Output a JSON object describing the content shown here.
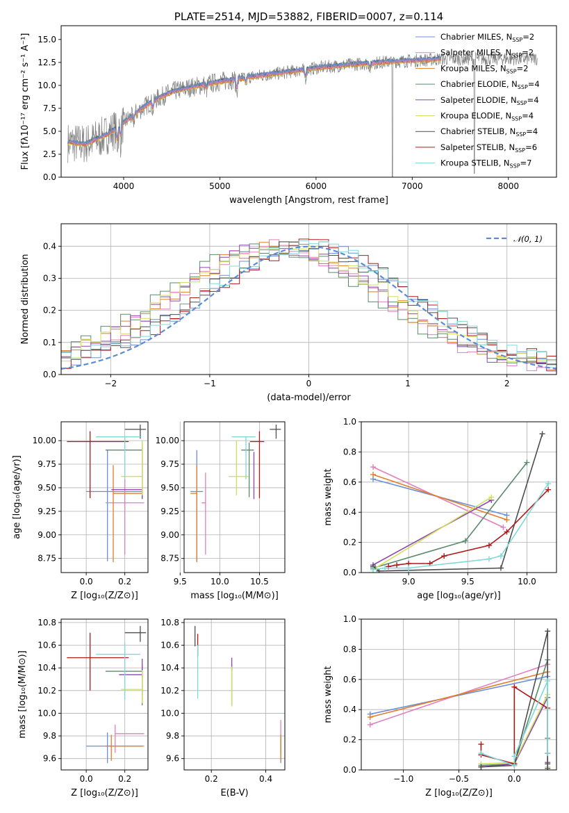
{
  "colors": {
    "chabrier_miles": "#6a8fd6",
    "salpeter_miles": "#e07fbd",
    "kroupa_miles": "#e07d28",
    "chabrier_elodie": "#5a8a6a",
    "salpeter_elodie": "#8e44ad",
    "kroupa_elodie": "#cfe05a",
    "chabrier_stelib": "#4d4d4d",
    "salpeter_stelib": "#b01818",
    "kroupa_stelib": "#7fd8d8",
    "normal": "#5b8bd6",
    "data": "#808080"
  },
  "chart_data": [
    {
      "id": "spectrum",
      "type": "line",
      "title": "PLATE=2514, MJD=53882, FIBERID=0007, z=0.114",
      "xlabel": "wavelength [Angstrom, rest frame]",
      "ylabel": "Flux [fλ10⁻¹⁷ erg cm⁻² s⁻¹ A⁻¹]",
      "xlim": [
        3350,
        8500
      ],
      "ylim": [
        0,
        16.5
      ],
      "xticks": [
        4000,
        5000,
        6000,
        7000,
        8000
      ],
      "yticks": [
        0.0,
        2.5,
        5.0,
        7.5,
        10.0,
        12.5,
        15.0
      ],
      "legend_position": "top-right",
      "legend": [
        {
          "label": "Chabrier MILES, N",
          "sub": "SSP",
          "suffix": "=2"
        },
        {
          "label": "Salpeter MILES, N",
          "sub": "SSP",
          "suffix": "=2"
        },
        {
          "label": "Kroupa MILES, N",
          "sub": "SSP",
          "suffix": "=2"
        },
        {
          "label": "Chabrier ELODIE, N",
          "sub": "SSP",
          "suffix": "=4"
        },
        {
          "label": "Salpeter ELODIE, N",
          "sub": "SSP",
          "suffix": "=4"
        },
        {
          "label": "Kroupa ELODIE, N",
          "sub": "SSP",
          "suffix": "=4"
        },
        {
          "label": "Chabrier STELIB, N",
          "sub": "SSP",
          "suffix": "=4"
        },
        {
          "label": "Salpeter STELIB, N",
          "sub": "SSP",
          "suffix": "=6"
        },
        {
          "label": "Kroupa STELIB, N",
          "sub": "SSP",
          "suffix": "=7"
        }
      ],
      "continuum": [
        [
          3420,
          3.8
        ],
        [
          3600,
          3.6
        ],
        [
          3800,
          4.5
        ],
        [
          3950,
          5.5
        ],
        [
          4100,
          6.8
        ],
        [
          4300,
          8.3
        ],
        [
          4500,
          9.3
        ],
        [
          4700,
          9.8
        ],
        [
          5000,
          10.4
        ],
        [
          5300,
          10.9
        ],
        [
          5600,
          11.3
        ],
        [
          6000,
          11.9
        ],
        [
          6400,
          12.3
        ],
        [
          6800,
          12.6
        ],
        [
          7200,
          12.8
        ],
        [
          7300,
          12.9
        ]
      ],
      "features": [
        [
          3933,
          -1.5
        ],
        [
          3968,
          -1.4
        ],
        [
          4101,
          -0.8
        ],
        [
          4304,
          -1.0
        ],
        [
          4861,
          -0.6
        ],
        [
          5175,
          -1.2
        ],
        [
          5270,
          -0.6
        ],
        [
          5890,
          -1.0
        ],
        [
          6563,
          -0.6
        ]
      ]
    },
    {
      "id": "residuals",
      "type": "histogram",
      "xlabel": "(data-model)/error",
      "ylabel": "Normed distribution",
      "xlim": [
        -2.5,
        2.5
      ],
      "ylim": [
        0,
        0.47
      ],
      "xticks": [
        -2,
        -1,
        0,
        1,
        2
      ],
      "yticks": [
        0.0,
        0.1,
        0.2,
        0.3,
        0.4
      ],
      "legend_position": "top-right",
      "reference_label": "𝒩(0, 1)",
      "bin_width": 0.1,
      "series_params": [
        {
          "name": "chabrier_miles",
          "sigma": 1.0,
          "mu": 0.0
        },
        {
          "name": "salpeter_miles",
          "sigma": 0.95,
          "mu": -0.35
        },
        {
          "name": "kroupa_miles",
          "sigma": 1.0,
          "mu": -0.3
        },
        {
          "name": "chabrier_elodie",
          "sigma": 1.0,
          "mu": -0.4
        },
        {
          "name": "salpeter_elodie",
          "sigma": 0.98,
          "mu": -0.3
        },
        {
          "name": "kroupa_elodie",
          "sigma": 1.02,
          "mu": -0.25
        },
        {
          "name": "chabrier_stelib",
          "sigma": 1.0,
          "mu": -0.05
        },
        {
          "name": "salpeter_stelib",
          "sigma": 1.0,
          "mu": 0.05
        },
        {
          "name": "kroupa_stelib",
          "sigma": 1.0,
          "mu": 0.0
        }
      ]
    },
    {
      "id": "age_vs_Z",
      "type": "errorbar",
      "xlabel": "Z [log₁₀(Z/Z⊙)]",
      "ylabel": "age  [log₁₀(age/yr)]",
      "xlim": [
        -0.13,
        0.32
      ],
      "ylim": [
        8.6,
        10.2
      ],
      "xticks": [
        0.0,
        0.2
      ],
      "yticks": [
        8.75,
        9.0,
        9.25,
        9.5,
        9.75,
        10.0
      ],
      "points": [
        {
          "s": "chabrier_miles",
          "x": 0.11,
          "y": 9.46,
          "xerr": [
            0.11,
            0.18
          ],
          "yerr": [
            0.74,
            0.44
          ]
        },
        {
          "s": "salpeter_miles",
          "x": 0.2,
          "y": 9.34,
          "xerr": [
            0.1,
            0.1
          ],
          "yerr": [
            0.55,
            0.25
          ]
        },
        {
          "s": "kroupa_miles",
          "x": 0.14,
          "y": 9.44,
          "xerr": [
            0.0,
            0.15
          ],
          "yerr": [
            0.73,
            0.3
          ]
        },
        {
          "s": "chabrier_elodie",
          "x": 0.29,
          "y": 9.9,
          "xerr": [
            0.19,
            0.0
          ],
          "yerr": [
            0.5,
            0.08
          ]
        },
        {
          "s": "salpeter_elodie",
          "x": 0.29,
          "y": 9.48,
          "xerr": [
            0.16,
            0.0
          ],
          "yerr": [
            0.1,
            0.4
          ]
        },
        {
          "s": "kroupa_elodie",
          "x": 0.29,
          "y": 9.62,
          "xerr": [
            0.11,
            0.0
          ],
          "yerr": [
            0.2,
            0.38
          ]
        },
        {
          "s": "chabrier_stelib",
          "x": 0.28,
          "y": 10.12,
          "xerr": [
            0.08,
            0.03
          ],
          "yerr": [
            0.1,
            0.05
          ]
        },
        {
          "s": "salpeter_stelib",
          "x": 0.02,
          "y": 9.99,
          "xerr": [
            0.12,
            0.2
          ],
          "yerr": [
            0.6,
            0.11
          ]
        },
        {
          "s": "kroupa_stelib",
          "x": 0.2,
          "y": 10.04,
          "xerr": [
            0.15,
            0.08
          ],
          "yerr": [
            0.45,
            0.0
          ]
        }
      ]
    },
    {
      "id": "age_vs_mass",
      "type": "errorbar",
      "xlabel": "mass [log₁₀(M/M⊙)]",
      "ylabel": "",
      "xlim": [
        9.55,
        10.82
      ],
      "ylim": [
        8.6,
        10.2
      ],
      "xticks": [
        9.5,
        10.0,
        10.5
      ],
      "yticks": [
        8.75,
        9.0,
        9.25,
        9.5,
        9.75,
        10.0
      ],
      "points": [
        {
          "s": "chabrier_miles",
          "x": 9.71,
          "y": 9.46,
          "xerr": [
            0.08,
            0.08
          ],
          "yerr": [
            0.74,
            0.44
          ]
        },
        {
          "s": "salpeter_miles",
          "x": 9.82,
          "y": 9.34,
          "xerr": [
            0.05,
            0.0
          ],
          "yerr": [
            0.55,
            0.32
          ]
        },
        {
          "s": "kroupa_miles",
          "x": 9.71,
          "y": 9.44,
          "xerr": [
            0.08,
            0.0
          ],
          "yerr": [
            0.73,
            0.3
          ]
        },
        {
          "s": "chabrier_elodie",
          "x": 10.37,
          "y": 9.9,
          "xerr": [
            0.1,
            0.06
          ],
          "yerr": [
            0.5,
            0.08
          ]
        },
        {
          "s": "salpeter_elodie",
          "x": 10.43,
          "y": 9.48,
          "xerr": [
            0.0,
            0.0
          ],
          "yerr": [
            0.1,
            0.4
          ]
        },
        {
          "s": "kroupa_elodie",
          "x": 10.21,
          "y": 9.62,
          "xerr": [
            0.1,
            0.15
          ],
          "yerr": [
            0.2,
            0.38
          ]
        },
        {
          "s": "chabrier_stelib",
          "x": 10.71,
          "y": 10.12,
          "xerr": [
            0.08,
            0.06
          ],
          "yerr": [
            0.1,
            0.05
          ]
        },
        {
          "s": "salpeter_stelib",
          "x": 10.5,
          "y": 9.99,
          "xerr": [
            0.12,
            0.06
          ],
          "yerr": [
            0.6,
            0.11
          ]
        },
        {
          "s": "kroupa_stelib",
          "x": 10.33,
          "y": 10.04,
          "xerr": [
            0.18,
            0.12
          ],
          "yerr": [
            0.45,
            0.0
          ]
        }
      ]
    },
    {
      "id": "weight_vs_age",
      "type": "line",
      "xlabel": "age  [log₁₀(age/yr)]",
      "ylabel": "mass weight",
      "xlim": [
        8.6,
        10.25
      ],
      "ylim": [
        0.0,
        1.0
      ],
      "xticks": [
        9.0,
        9.5,
        10.0
      ],
      "yticks": [
        0.0,
        0.2,
        0.4,
        0.6,
        0.8,
        1.0
      ],
      "series": [
        {
          "s": "chabrier_miles",
          "x": [
            8.7,
            9.83
          ],
          "y": [
            0.62,
            0.38
          ]
        },
        {
          "s": "salpeter_miles",
          "x": [
            8.7,
            9.8
          ],
          "y": [
            0.7,
            0.3
          ]
        },
        {
          "s": "kroupa_miles",
          "x": [
            8.7,
            9.83
          ],
          "y": [
            0.65,
            0.35
          ]
        },
        {
          "s": "chabrier_elodie",
          "x": [
            8.7,
            9.48,
            10.0
          ],
          "y": [
            0.03,
            0.21,
            0.73
          ]
        },
        {
          "s": "salpeter_elodie",
          "x": [
            8.7,
            9.7
          ],
          "y": [
            0.05,
            0.48
          ]
        },
        {
          "s": "kroupa_elodie",
          "x": [
            8.7,
            9.7
          ],
          "y": [
            0.02,
            0.5
          ]
        },
        {
          "s": "chabrier_stelib",
          "x": [
            8.7,
            8.75,
            9.78,
            10.13
          ],
          "y": [
            0.04,
            0.01,
            0.03,
            0.92
          ]
        },
        {
          "s": "salpeter_stelib",
          "x": [
            8.83,
            8.9,
            9.0,
            9.18,
            9.3,
            9.68,
            9.83,
            10.18
          ],
          "y": [
            0.04,
            0.05,
            0.06,
            0.06,
            0.11,
            0.18,
            0.27,
            0.55
          ]
        },
        {
          "s": "kroupa_stelib",
          "x": [
            8.7,
            8.8,
            9.0,
            9.68,
            9.78,
            10.18
          ],
          "y": [
            0.02,
            0.03,
            0.03,
            0.09,
            0.11,
            0.59
          ]
        }
      ]
    },
    {
      "id": "mass_vs_Z",
      "type": "errorbar",
      "xlabel": "Z [log₁₀(Z/Z⊙)]",
      "ylabel": "mass [log₁₀(M/M⊙)]",
      "xlim": [
        -0.13,
        0.32
      ],
      "ylim": [
        9.5,
        10.83
      ],
      "xticks": [
        0.0,
        0.2
      ],
      "yticks": [
        9.6,
        9.8,
        10.0,
        10.2,
        10.4,
        10.6,
        10.8
      ],
      "points": [
        {
          "s": "chabrier_miles",
          "x": 0.11,
          "y": 9.71,
          "xerr": [
            0.11,
            0.18
          ],
          "yerr": [
            0.15,
            0.12
          ]
        },
        {
          "s": "salpeter_miles",
          "x": 0.15,
          "y": 9.82,
          "xerr": [
            0.0,
            0.15
          ],
          "yerr": [
            0.17,
            0.08
          ]
        },
        {
          "s": "kroupa_miles",
          "x": 0.13,
          "y": 9.71,
          "xerr": [
            0.03,
            0.17
          ],
          "yerr": [
            0.13,
            0.1
          ]
        },
        {
          "s": "chabrier_elodie",
          "x": 0.29,
          "y": 10.37,
          "xerr": [
            0.19,
            0.0
          ],
          "yerr": [
            0.3,
            0.06
          ]
        },
        {
          "s": "salpeter_elodie",
          "x": 0.29,
          "y": 10.34,
          "xerr": [
            0.12,
            0.0
          ],
          "yerr": [
            0.18,
            0.14
          ]
        },
        {
          "s": "kroupa_elodie",
          "x": 0.29,
          "y": 10.21,
          "xerr": [
            0.11,
            0.0
          ],
          "yerr": [
            0.12,
            0.17
          ]
        },
        {
          "s": "chabrier_stelib",
          "x": 0.28,
          "y": 10.71,
          "xerr": [
            0.08,
            0.03
          ],
          "yerr": [
            0.08,
            0.06
          ]
        },
        {
          "s": "salpeter_stelib",
          "x": 0.02,
          "y": 10.49,
          "xerr": [
            0.12,
            0.2
          ],
          "yerr": [
            0.29,
            0.22
          ]
        },
        {
          "s": "kroupa_stelib",
          "x": 0.2,
          "y": 10.52,
          "xerr": [
            0.15,
            0.08
          ],
          "yerr": [
            0.4,
            0.1
          ]
        }
      ]
    },
    {
      "id": "mass_vs_ebv",
      "type": "errorbar",
      "xlabel": "E(B-V)",
      "ylabel": "",
      "xlim": [
        0.1,
        0.47
      ],
      "ylim": [
        9.5,
        10.83
      ],
      "xticks": [
        0.2,
        0.4
      ],
      "yticks": [
        9.6,
        9.8,
        10.0,
        10.2,
        10.4,
        10.6,
        10.8
      ],
      "points": [
        {
          "s": "chabrier_miles",
          "x": 0.455,
          "y": 9.71,
          "xerr": [
            0,
            0
          ],
          "yerr": [
            0.15,
            0.1
          ]
        },
        {
          "s": "salpeter_miles",
          "x": 0.455,
          "y": 9.82,
          "xerr": [
            0,
            0
          ],
          "yerr": [
            0.17,
            0.12
          ]
        },
        {
          "s": "kroupa_miles",
          "x": 0.455,
          "y": 9.71,
          "xerr": [
            0,
            0
          ],
          "yerr": [
            0.13,
            0.1
          ]
        },
        {
          "s": "chabrier_elodie",
          "x": 0.275,
          "y": 10.37,
          "xerr": [
            0,
            0
          ],
          "yerr": [
            0.3,
            0.06
          ]
        },
        {
          "s": "salpeter_elodie",
          "x": 0.275,
          "y": 10.43,
          "xerr": [
            0,
            0
          ],
          "yerr": [
            0.05,
            0.06
          ]
        },
        {
          "s": "kroupa_elodie",
          "x": 0.275,
          "y": 10.21,
          "xerr": [
            0,
            0
          ],
          "yerr": [
            0.15,
            0.2
          ]
        },
        {
          "s": "chabrier_stelib",
          "x": 0.14,
          "y": 10.71,
          "xerr": [
            0,
            0
          ],
          "yerr": [
            0.12,
            0.06
          ]
        },
        {
          "s": "salpeter_stelib",
          "x": 0.15,
          "y": 10.6,
          "xerr": [
            0,
            0
          ],
          "yerr": [
            0.1,
            0.1
          ]
        },
        {
          "s": "kroupa_stelib",
          "x": 0.15,
          "y": 10.4,
          "xerr": [
            0,
            0
          ],
          "yerr": [
            0.27,
            0.2
          ]
        }
      ]
    },
    {
      "id": "weight_vs_Z",
      "type": "line",
      "xlabel": "Z [log₁₀(Z/Z⊙)]",
      "ylabel": "mass weight",
      "xlim": [
        -1.38,
        0.38
      ],
      "ylim": [
        0.0,
        1.0
      ],
      "xticks": [
        -1.0,
        -0.5,
        0.0
      ],
      "yticks": [
        0.0,
        0.2,
        0.4,
        0.6,
        0.8,
        1.0
      ],
      "series": [
        {
          "s": "chabrier_miles",
          "x": [
            -1.3,
            0.3
          ],
          "y": [
            0.37,
            0.62
          ]
        },
        {
          "s": "salpeter_miles",
          "x": [
            -1.3,
            0.3
          ],
          "y": [
            0.3,
            0.7
          ]
        },
        {
          "s": "kroupa_miles",
          "x": [
            -1.3,
            0.3
          ],
          "y": [
            0.35,
            0.65
          ]
        },
        {
          "s": "chabrier_elodie",
          "x": [
            -0.3,
            0.0,
            0.3,
            0.3
          ],
          "y": [
            0.03,
            0.04,
            0.73,
            0.21
          ]
        },
        {
          "s": "salpeter_elodie",
          "x": [
            -0.3,
            0.0,
            0.3,
            0.3
          ],
          "y": [
            0.02,
            0.04,
            0.48,
            0.05
          ]
        },
        {
          "s": "kroupa_elodie",
          "x": [
            -0.3,
            0.0,
            0.3,
            0.3
          ],
          "y": [
            0.04,
            0.05,
            0.5,
            0.02
          ]
        },
        {
          "s": "chabrier_stelib",
          "x": [
            -0.3,
            0.0,
            0.3,
            0.3,
            0.3
          ],
          "y": [
            0.02,
            0.03,
            0.92,
            0.04,
            0.01
          ]
        },
        {
          "s": "salpeter_stelib",
          "x": [
            -0.3,
            -0.3,
            0.0,
            0.0,
            0.3,
            0.3
          ],
          "y": [
            0.17,
            0.1,
            0.04,
            0.55,
            0.41,
            0.11
          ]
        },
        {
          "s": "kroupa_stelib",
          "x": [
            -0.3,
            0.0,
            0.0,
            0.3,
            0.3
          ],
          "y": [
            0.11,
            0.03,
            0.09,
            0.59,
            0.11
          ]
        }
      ]
    }
  ]
}
